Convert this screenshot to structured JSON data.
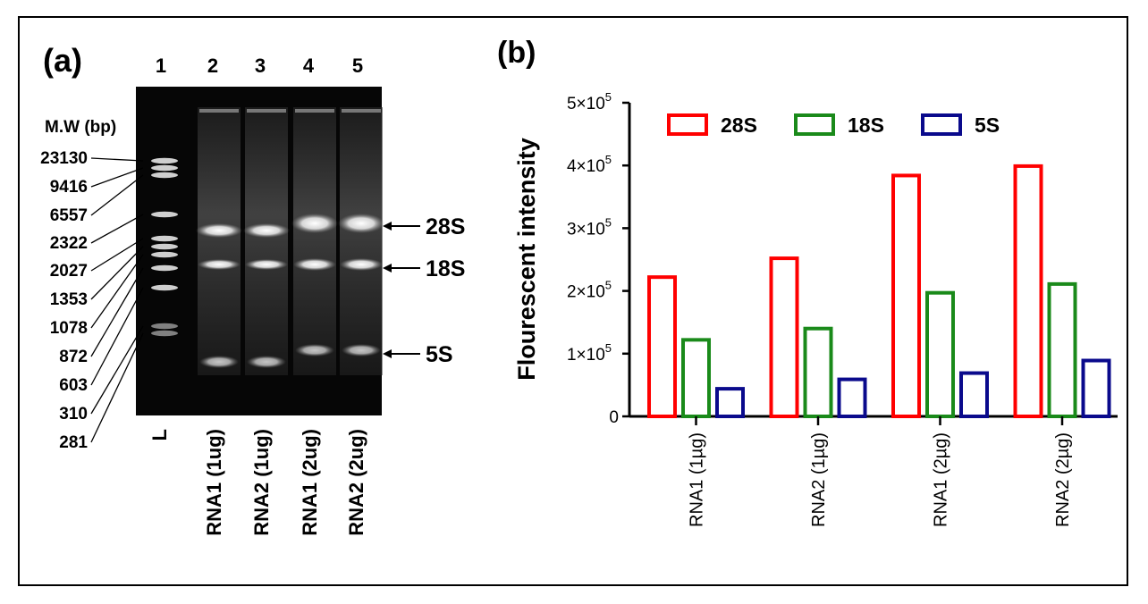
{
  "panel_a": {
    "label": "(a)",
    "lane_numbers": [
      "1",
      "2",
      "3",
      "4",
      "5"
    ],
    "mw_header": "M.W (bp)",
    "markers": [
      "23130",
      "9416",
      "6557",
      "2322",
      "2027",
      "1353",
      "1078",
      "872",
      "603",
      "310",
      "281"
    ],
    "ladder_label": "L",
    "sample_labels": [
      "RNA1 (1ug)",
      "RNA2 (1ug)",
      "RNA1 (2ug)",
      "RNA2 (2ug)"
    ],
    "band_labels": [
      "28S",
      "18S",
      "5S"
    ]
  },
  "panel_b": {
    "label": "(b)"
  },
  "chart_data": {
    "type": "bar",
    "categories": [
      "RNA1 (1µg)",
      "RNA2 (1µg)",
      "RNA1 (2µg)",
      "RNA2 (2µg)"
    ],
    "series": [
      {
        "name": "28S",
        "values": [
          222000,
          252000,
          384000,
          399000
        ],
        "color": "#ff0000"
      },
      {
        "name": "18S",
        "values": [
          122000,
          140000,
          197000,
          211000
        ],
        "color": "#1a8a1a"
      },
      {
        "name": "5S",
        "values": [
          44000,
          59000,
          69000,
          89000
        ],
        "color": "#0a0a8c"
      }
    ],
    "ylabel": "Flourescent intensity",
    "xlabel": "",
    "ylim": [
      0,
      500000
    ],
    "yticks": [
      {
        "value": 0,
        "mantissa": "0",
        "exp": ""
      },
      {
        "value": 100000,
        "mantissa": "1×10",
        "exp": "5"
      },
      {
        "value": 200000,
        "mantissa": "2×10",
        "exp": "5"
      },
      {
        "value": 300000,
        "mantissa": "3×10",
        "exp": "5"
      },
      {
        "value": 400000,
        "mantissa": "4×10",
        "exp": "5"
      },
      {
        "value": 500000,
        "mantissa": "5×10",
        "exp": "5"
      }
    ],
    "legend_position": "top",
    "grid": false
  }
}
